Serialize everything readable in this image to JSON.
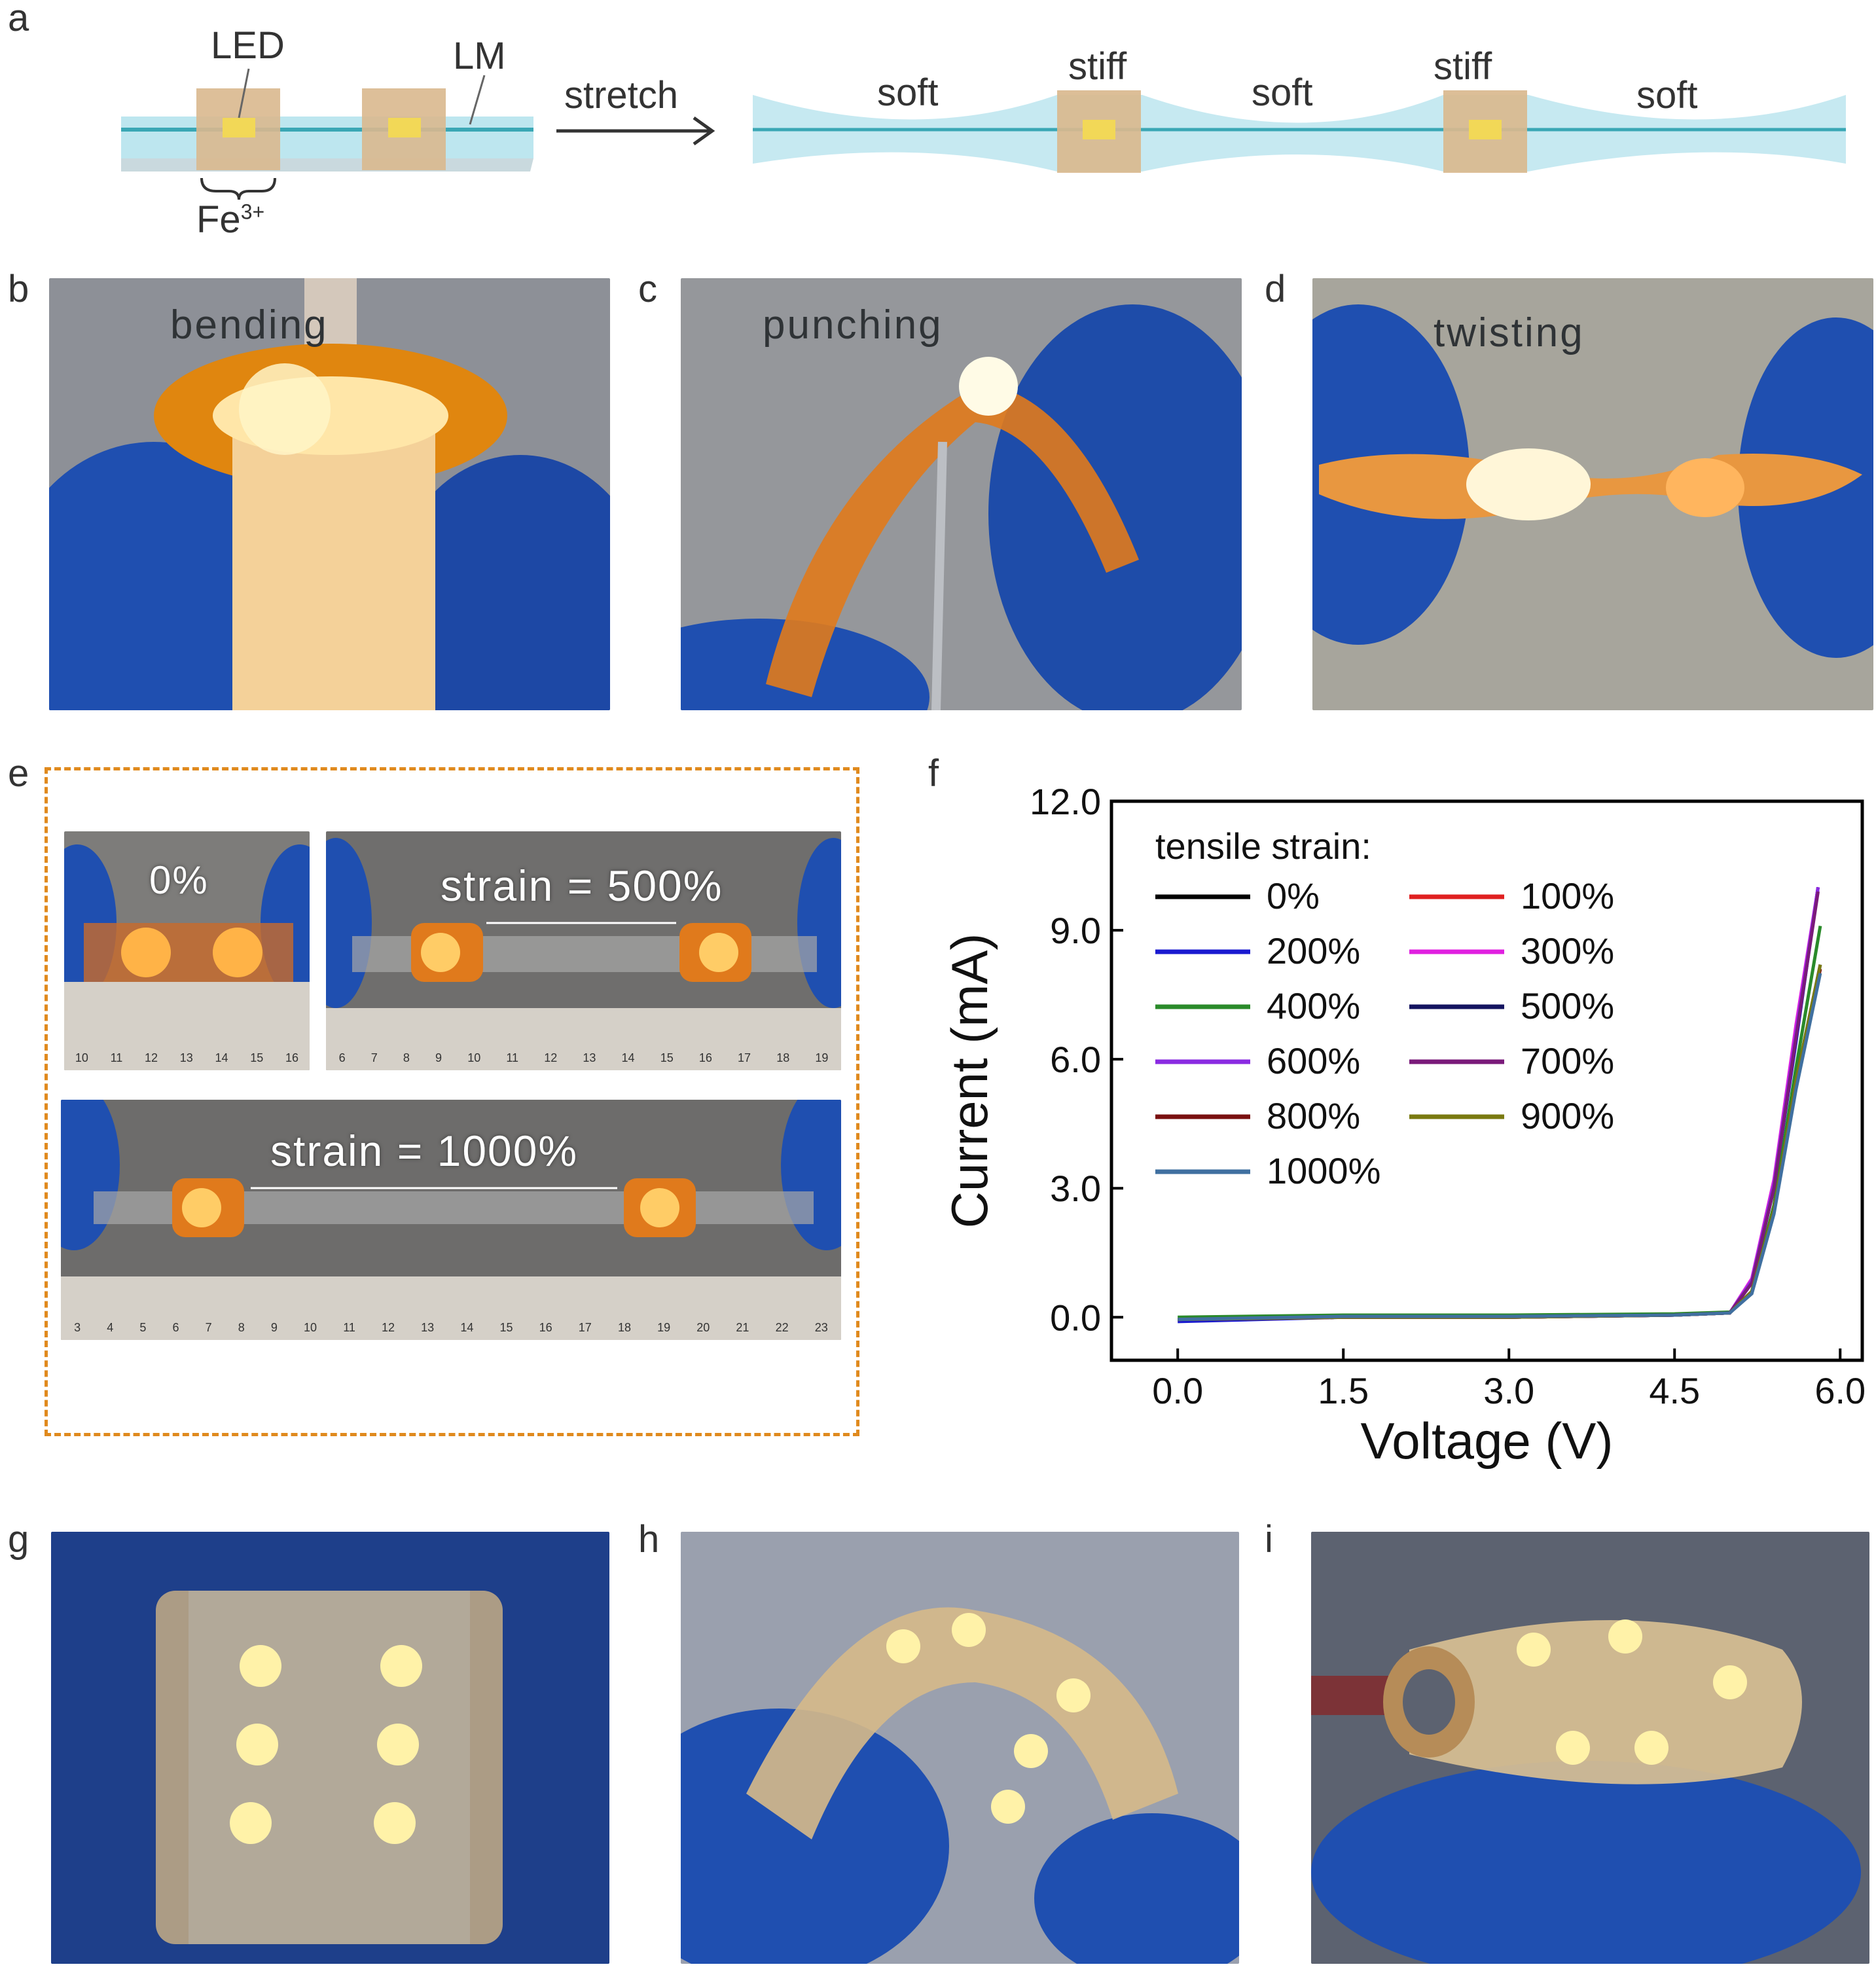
{
  "panel_labels": {
    "a": "a",
    "b": "b",
    "c": "c",
    "d": "d",
    "e": "e",
    "f": "f",
    "g": "g",
    "h": "h",
    "i": "i"
  },
  "diagram_a": {
    "led": "LED",
    "lm": "LM",
    "fe": "Fe",
    "fe_sup": "3+",
    "stretch": "stretch",
    "soft1": "soft",
    "stiff1": "stiff",
    "soft2": "soft",
    "stiff2": "stiff",
    "soft3": "soft"
  },
  "photos": {
    "bending": "bending",
    "punching": "punching",
    "twisting": "twisting"
  },
  "panel_e": {
    "strain0": "0%",
    "strain500": "strain = 500%",
    "strain1000": "strain = 1000%",
    "ruler1": [
      "10",
      "11",
      "12",
      "13",
      "14",
      "15",
      "16"
    ],
    "ruler2": [
      "6",
      "7",
      "8",
      "9",
      "10",
      "11",
      "12",
      "13",
      "14",
      "15",
      "16",
      "17",
      "18",
      "19"
    ],
    "ruler3": [
      "3",
      "4",
      "5",
      "6",
      "7",
      "8",
      "9",
      "10",
      "11",
      "12",
      "13",
      "14",
      "15",
      "16",
      "17",
      "18",
      "19",
      "20",
      "21",
      "22",
      "23"
    ]
  },
  "colors": {
    "dashed_box": "#e08a1e",
    "led_glow": "#ffb347",
    "glove": "#1f4fb0",
    "background_photo": "#8c8f96"
  },
  "chart_data": {
    "type": "line",
    "xlabel": "Voltage (V)",
    "ylabel": "Current (mA)",
    "xlim": [
      -0.6,
      6.2
    ],
    "ylim": [
      -1.0,
      12.0
    ],
    "xticks": [
      "0.0",
      "1.5",
      "3.0",
      "4.5",
      "6.0"
    ],
    "xtick_values": [
      0.0,
      1.5,
      3.0,
      4.5,
      6.0
    ],
    "yticks": [
      "0.0",
      "3.0",
      "6.0",
      "9.0",
      "12.0"
    ],
    "ytick_values": [
      0.0,
      3.0,
      6.0,
      9.0,
      12.0
    ],
    "legend_title": "tensile strain:",
    "legend_position": "top-left",
    "series": [
      {
        "name": "0%",
        "color": "#000000",
        "x": [
          0.0,
          1.5,
          3.0,
          4.5,
          5.0,
          5.2,
          5.4,
          5.6,
          5.8
        ],
        "y": [
          -0.05,
          0.0,
          0.0,
          0.05,
          0.1,
          0.8,
          3.0,
          6.5,
          10.0
        ]
      },
      {
        "name": "100%",
        "color": "#e02020",
        "x": [
          0.0,
          1.5,
          3.0,
          4.5,
          5.0,
          5.2,
          5.4,
          5.6,
          5.8
        ],
        "y": [
          -0.05,
          0.0,
          0.0,
          0.05,
          0.1,
          0.8,
          3.0,
          6.5,
          10.0
        ]
      },
      {
        "name": "200%",
        "color": "#1a1ad0",
        "x": [
          0.0,
          1.5,
          3.0,
          4.5,
          5.0,
          5.2,
          5.4,
          5.6,
          5.8
        ],
        "y": [
          -0.1,
          0.0,
          0.0,
          0.05,
          0.1,
          0.8,
          3.0,
          6.4,
          10.0
        ]
      },
      {
        "name": "300%",
        "color": "#e020e0",
        "x": [
          0.0,
          1.5,
          3.0,
          4.5,
          5.0,
          5.2,
          5.4,
          5.6,
          5.8
        ],
        "y": [
          -0.05,
          0.0,
          0.0,
          0.05,
          0.1,
          0.9,
          3.2,
          6.8,
          10.0
        ]
      },
      {
        "name": "400%",
        "color": "#2a8a2a",
        "x": [
          0.0,
          1.5,
          3.0,
          4.5,
          5.0,
          5.2,
          5.4,
          5.6,
          5.82
        ],
        "y": [
          0.0,
          0.05,
          0.05,
          0.08,
          0.12,
          0.6,
          2.6,
          5.8,
          9.1
        ]
      },
      {
        "name": "500%",
        "color": "#141460",
        "x": [
          0.0,
          1.5,
          3.0,
          4.5,
          5.0,
          5.2,
          5.4,
          5.6,
          5.82
        ],
        "y": [
          -0.05,
          0.0,
          0.0,
          0.05,
          0.1,
          0.6,
          2.5,
          5.5,
          8.2
        ]
      },
      {
        "name": "600%",
        "color": "#8a2be2",
        "x": [
          0.0,
          1.5,
          3.0,
          4.5,
          5.0,
          5.2,
          5.4,
          5.6,
          5.8
        ],
        "y": [
          -0.05,
          0.0,
          0.0,
          0.05,
          0.1,
          0.85,
          3.1,
          6.6,
          10.0
        ]
      },
      {
        "name": "700%",
        "color": "#7a1a7a",
        "x": [
          0.0,
          1.5,
          3.0,
          4.5,
          5.0,
          5.2,
          5.4,
          5.6,
          5.8
        ],
        "y": [
          -0.05,
          0.0,
          0.0,
          0.05,
          0.1,
          0.8,
          3.0,
          6.5,
          9.9
        ]
      },
      {
        "name": "800%",
        "color": "#7a1010",
        "x": [
          0.0,
          1.5,
          3.0,
          4.5,
          5.0,
          5.2,
          5.4,
          5.6,
          5.82
        ],
        "y": [
          -0.05,
          0.0,
          0.0,
          0.05,
          0.1,
          0.6,
          2.5,
          5.4,
          8.1
        ]
      },
      {
        "name": "900%",
        "color": "#7a7a10",
        "x": [
          0.0,
          1.5,
          3.0,
          4.5,
          5.0,
          5.2,
          5.4,
          5.6,
          5.82
        ],
        "y": [
          -0.05,
          0.0,
          0.0,
          0.05,
          0.1,
          0.6,
          2.5,
          5.5,
          8.2
        ]
      },
      {
        "name": "1000%",
        "color": "#4070a0",
        "x": [
          0.0,
          1.5,
          3.0,
          4.5,
          5.0,
          5.2,
          5.4,
          5.6,
          5.82
        ],
        "y": [
          -0.05,
          0.02,
          0.02,
          0.05,
          0.1,
          0.55,
          2.4,
          5.3,
          8.0
        ]
      }
    ]
  }
}
